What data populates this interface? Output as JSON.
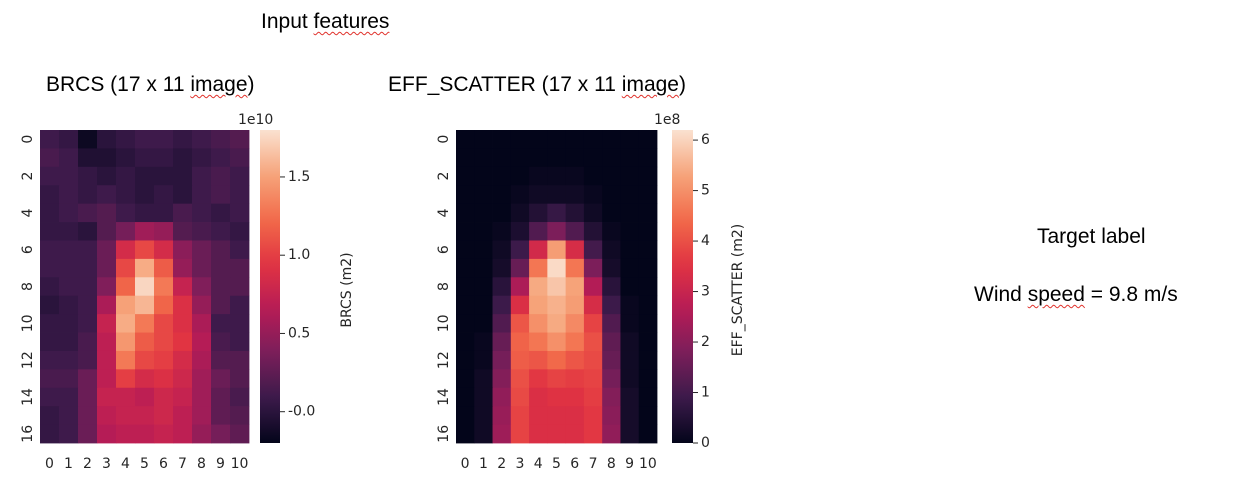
{
  "header": {
    "title_plain": "Input ",
    "title_wavy": "features"
  },
  "panels": [
    {
      "title_main": "BRCS (17 x 11 ",
      "title_wavy": "image",
      "title_end": ")"
    },
    {
      "title_main": "EFF_SCATTER (17 x 11 ",
      "title_wavy": "image",
      "title_end": ")"
    }
  ],
  "target": {
    "heading": "Target label",
    "line_start": "Wind ",
    "line_wavy": "speed",
    "line_end": " = 9.8 m/s"
  },
  "colors": {
    "cmap": [
      "#03051a",
      "#3b1a4a",
      "#7a1e5a",
      "#b71c56",
      "#e13342",
      "#f26b4a",
      "#f6a47a",
      "#fae1d0"
    ]
  },
  "chart_data": [
    {
      "type": "heatmap",
      "title": "BRCS (17 x 11 image)",
      "rows": [
        "0",
        "1",
        "2",
        "3",
        "4",
        "5",
        "6",
        "7",
        "8",
        "9",
        "10",
        "11",
        "12",
        "13",
        "14",
        "15",
        "16"
      ],
      "cols": [
        "0",
        "1",
        "2",
        "3",
        "4",
        "5",
        "6",
        "7",
        "8",
        "9",
        "10"
      ],
      "ytick_labels": [
        "0",
        "2",
        "4",
        "6",
        "8",
        "10",
        "12",
        "14",
        "16"
      ],
      "xtick_labels": [
        "0",
        "1",
        "2",
        "3",
        "4",
        "5",
        "6",
        "7",
        "8",
        "9",
        "10"
      ],
      "colorbar": {
        "label": "BRCS (m2)",
        "multiplier": "1e10",
        "ticks": [
          "-0.0",
          "0.5",
          "1.0",
          "1.5"
        ],
        "tick_values": [
          0.0,
          0.5,
          1.0,
          1.5
        ],
        "vmin": -0.2,
        "vmax": 1.8
      },
      "values": [
        [
          0.1,
          0.05,
          -0.15,
          0.0,
          0.05,
          0.1,
          0.1,
          0.05,
          0.1,
          0.15,
          0.2
        ],
        [
          0.15,
          0.1,
          -0.05,
          -0.05,
          0.0,
          0.05,
          0.05,
          0.0,
          0.05,
          0.1,
          0.15
        ],
        [
          0.1,
          0.1,
          0.05,
          0.0,
          0.05,
          0.0,
          0.0,
          0.0,
          0.1,
          0.15,
          0.1
        ],
        [
          0.05,
          0.1,
          0.05,
          0.1,
          0.05,
          0.0,
          0.05,
          0.0,
          0.1,
          0.15,
          0.1
        ],
        [
          0.05,
          0.1,
          0.15,
          0.2,
          0.1,
          0.05,
          0.05,
          0.15,
          0.1,
          0.05,
          0.1
        ],
        [
          0.05,
          0.05,
          0.0,
          0.2,
          0.35,
          0.55,
          0.5,
          0.2,
          0.15,
          0.1,
          0.05
        ],
        [
          0.1,
          0.1,
          0.1,
          0.3,
          0.85,
          1.05,
          0.85,
          0.45,
          0.3,
          0.2,
          0.1
        ],
        [
          0.1,
          0.1,
          0.1,
          0.3,
          1.05,
          1.55,
          1.15,
          0.5,
          0.3,
          0.2,
          0.2
        ],
        [
          0.05,
          0.1,
          0.1,
          0.4,
          1.2,
          1.75,
          1.3,
          0.75,
          0.4,
          0.2,
          0.2
        ],
        [
          0.0,
          0.05,
          0.1,
          0.6,
          1.5,
          1.6,
          1.2,
          0.9,
          0.5,
          0.2,
          0.1
        ],
        [
          0.05,
          0.05,
          0.1,
          0.75,
          1.55,
          1.3,
          1.05,
          0.9,
          0.6,
          0.1,
          0.1
        ],
        [
          0.05,
          0.05,
          0.15,
          0.7,
          1.45,
          1.15,
          1.05,
          0.95,
          0.65,
          0.15,
          0.1
        ],
        [
          0.1,
          0.1,
          0.15,
          0.7,
          1.3,
          1.05,
          1.0,
          0.85,
          0.6,
          0.2,
          0.2
        ],
        [
          0.15,
          0.15,
          0.3,
          0.7,
          1.0,
          0.85,
          0.9,
          0.8,
          0.55,
          0.3,
          0.2
        ],
        [
          0.1,
          0.1,
          0.3,
          0.75,
          0.75,
          0.7,
          0.8,
          0.75,
          0.55,
          0.25,
          0.15
        ],
        [
          0.05,
          0.1,
          0.3,
          0.7,
          0.75,
          0.75,
          0.8,
          0.7,
          0.55,
          0.25,
          0.2
        ],
        [
          0.05,
          0.1,
          0.3,
          0.65,
          0.7,
          0.7,
          0.75,
          0.7,
          0.5,
          0.35,
          0.25
        ]
      ]
    },
    {
      "type": "heatmap",
      "title": "EFF_SCATTER (17 x 11 image)",
      "rows": [
        "0",
        "1",
        "2",
        "3",
        "4",
        "5",
        "6",
        "7",
        "8",
        "9",
        "10",
        "11",
        "12",
        "13",
        "14",
        "15",
        "16"
      ],
      "cols": [
        "0",
        "1",
        "2",
        "3",
        "4",
        "5",
        "6",
        "7",
        "8",
        "9",
        "10"
      ],
      "ytick_labels": [
        "0",
        "2",
        "4",
        "6",
        "8",
        "10",
        "12",
        "14",
        "16"
      ],
      "xtick_labels": [
        "0",
        "1",
        "2",
        "3",
        "4",
        "5",
        "6",
        "7",
        "8",
        "9",
        "10"
      ],
      "colorbar": {
        "label": "EFF_SCATTER (m2)",
        "multiplier": "1e8",
        "ticks": [
          "0",
          "1",
          "2",
          "3",
          "4",
          "5",
          "6"
        ],
        "tick_values": [
          0,
          1,
          2,
          3,
          4,
          5,
          6
        ],
        "vmin": 0,
        "vmax": 6.2
      },
      "values": [
        [
          0.0,
          0.0,
          0.0,
          0.0,
          0.0,
          0.0,
          0.0,
          0.0,
          0.0,
          0.0,
          0.0
        ],
        [
          0.0,
          0.0,
          0.0,
          0.0,
          0.0,
          0.0,
          0.0,
          0.0,
          0.0,
          0.0,
          0.0
        ],
        [
          0.0,
          0.0,
          0.0,
          0.0,
          0.1,
          0.1,
          0.1,
          0.0,
          0.0,
          0.0,
          0.0
        ],
        [
          0.0,
          0.0,
          0.0,
          0.1,
          0.2,
          0.2,
          0.2,
          0.1,
          0.0,
          0.0,
          0.0
        ],
        [
          0.0,
          0.0,
          0.0,
          0.2,
          0.5,
          0.8,
          0.5,
          0.2,
          0.0,
          0.0,
          0.0
        ],
        [
          0.0,
          0.0,
          0.1,
          0.4,
          1.2,
          1.8,
          1.2,
          0.5,
          0.1,
          0.0,
          0.0
        ],
        [
          0.0,
          0.0,
          0.2,
          0.9,
          3.2,
          5.2,
          3.3,
          1.0,
          0.2,
          0.0,
          0.0
        ],
        [
          0.0,
          0.0,
          0.3,
          1.5,
          4.6,
          6.1,
          4.6,
          1.8,
          0.3,
          0.0,
          0.0
        ],
        [
          0.0,
          0.0,
          0.6,
          2.5,
          5.4,
          5.8,
          5.3,
          2.6,
          0.6,
          0.0,
          0.0
        ],
        [
          0.0,
          0.0,
          0.9,
          3.4,
          5.3,
          5.5,
          5.2,
          3.3,
          0.9,
          0.1,
          0.0
        ],
        [
          0.0,
          0.0,
          1.2,
          4.1,
          5.0,
          5.4,
          4.9,
          3.8,
          1.2,
          0.1,
          0.0
        ],
        [
          0.0,
          0.1,
          1.5,
          4.3,
          4.6,
          5.0,
          4.6,
          4.0,
          1.4,
          0.2,
          0.0
        ],
        [
          0.0,
          0.1,
          1.7,
          4.2,
          4.1,
          4.4,
          4.1,
          3.9,
          1.5,
          0.2,
          0.0
        ],
        [
          0.0,
          0.2,
          1.9,
          4.0,
          3.6,
          3.8,
          3.7,
          3.8,
          1.7,
          0.2,
          0.0
        ],
        [
          0.0,
          0.2,
          2.1,
          3.9,
          3.4,
          3.5,
          3.5,
          3.7,
          1.9,
          0.3,
          0.0
        ],
        [
          0.0,
          0.2,
          2.2,
          3.8,
          3.4,
          3.4,
          3.4,
          3.6,
          2.0,
          0.3,
          0.0
        ],
        [
          0.0,
          0.2,
          2.3,
          3.8,
          3.4,
          3.4,
          3.4,
          3.6,
          2.1,
          0.3,
          0.0
        ]
      ]
    }
  ]
}
